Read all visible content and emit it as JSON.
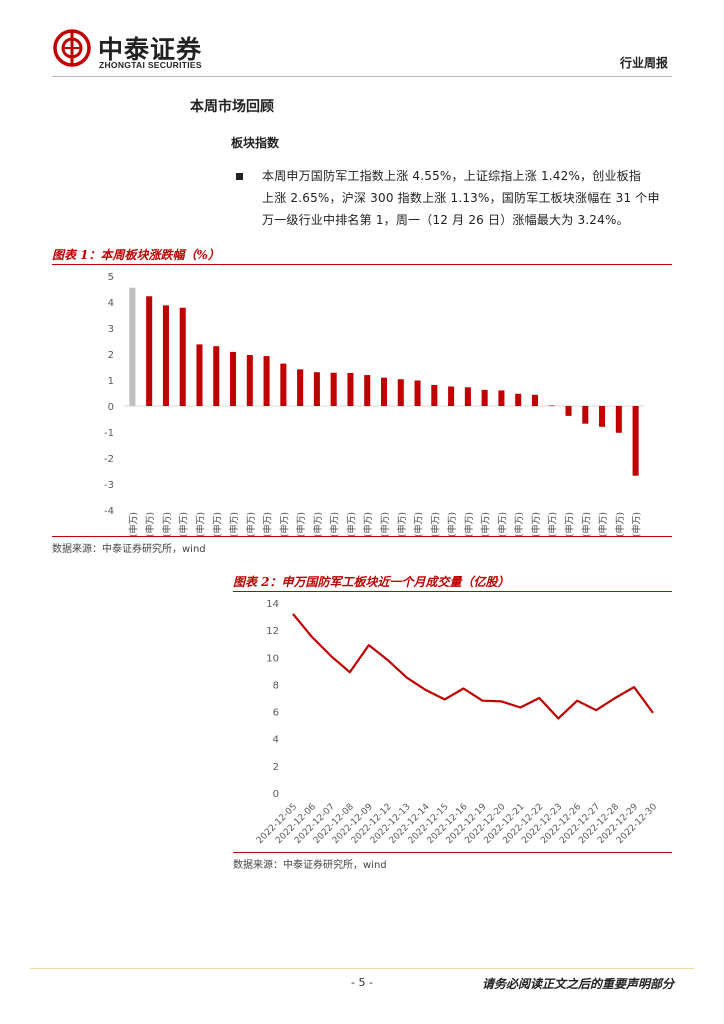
{
  "header": {
    "company_cn": "中泰证券",
    "company_en": "ZHONGTAI SECURITIES",
    "report_type": "行业周报"
  },
  "section_title": "本周市场回顾",
  "subsection_title": "板块指数",
  "bullet_lines": [
    "本周申万国防军工指数上涨 4.55%，上证综指上涨 1.42%，创业板指",
    "上涨 2.65%，沪深 300 指数上涨 1.13%，国防军工板块涨幅在 31 个申",
    "万一级行业中排名第 1，周一（12 月 26 日）涨幅最大为 3.24%。"
  ],
  "figure1": {
    "caption": "图表 1：本周板块涨跌幅（%）",
    "source": "数据来源：中泰证券研究所，wind"
  },
  "figure2": {
    "caption": "图表 2：申万国防军工板块近一个月成交量（亿股）",
    "source": "数据来源：中泰证券研究所，wind"
  },
  "colors": {
    "accent": "#c00000",
    "highlight_bar": "#bfbfbf",
    "axis_text": "#595959"
  },
  "chart_data": [
    {
      "type": "bar",
      "title": "本周板块涨跌幅（%）",
      "xlabel": "",
      "ylabel": "",
      "ylim": [
        -4,
        5
      ],
      "yticks": [
        5,
        4,
        3,
        2,
        1,
        0,
        -1,
        -2,
        -3,
        -4
      ],
      "grid": false,
      "categories": [
        "国防军工(申万)",
        "公用事业(申万)",
        "美容护理(申万)",
        "电力设备(申万)",
        "环保(申万)",
        "银行(申万)",
        "农林牧渔(申万)",
        "机械设备(申万)",
        "传媒(申万)",
        "基础化工(申万)",
        "计算机(申万)",
        "电子(申万)",
        "石油石化(申万)",
        "非银金融(申万)",
        "通信(申万)",
        "纺织服饰(申万)",
        "社会服务(申万)",
        "医药生物(申万)",
        "轻工制造(申万)",
        "综合(申万)",
        "汽车(申万)",
        "建筑装饰(申万)",
        "有色金属(申万)",
        "钢铁(申万)",
        "商贸零售(申万)",
        "交通运输(申万)",
        "煤炭(申万)",
        "家用电器(申万)",
        "食品饮料(申万)",
        "建筑材料(申万)",
        "房地产(申万)"
      ],
      "values": [
        4.55,
        4.22,
        3.87,
        3.78,
        2.37,
        2.3,
        2.08,
        1.96,
        1.92,
        1.63,
        1.41,
        1.3,
        1.28,
        1.27,
        1.19,
        1.09,
        1.03,
        0.98,
        0.81,
        0.75,
        0.72,
        0.62,
        0.6,
        0.47,
        0.43,
        0.02,
        -0.38,
        -0.68,
        -0.8,
        -1.03,
        -2.68
      ],
      "highlight_index": 0
    },
    {
      "type": "line",
      "title": "申万国防军工板块近一个月成交量（亿股）",
      "xlabel": "",
      "ylabel": "",
      "ylim": [
        0,
        14
      ],
      "yticks": [
        0,
        2,
        4,
        6,
        8,
        10,
        12,
        14
      ],
      "grid": false,
      "x": [
        "2022-12-05",
        "2022-12-06",
        "2022-12-07",
        "2022-12-08",
        "2022-12-09",
        "2022-12-12",
        "2022-12-13",
        "2022-12-14",
        "2022-12-15",
        "2022-12-16",
        "2022-12-19",
        "2022-12-20",
        "2022-12-21",
        "2022-12-22",
        "2022-12-23",
        "2022-12-26",
        "2022-12-27",
        "2022-12-28",
        "2022-12-29",
        "2022-12-30"
      ],
      "values": [
        13.2,
        11.5,
        10.1,
        8.9,
        10.9,
        9.8,
        8.5,
        7.6,
        6.9,
        7.7,
        6.8,
        6.75,
        6.3,
        7.0,
        5.5,
        6.8,
        6.1,
        7.0,
        7.8,
        5.9
      ]
    }
  ],
  "footer": {
    "page_number": "- 5 -",
    "disclaimer": "请务必阅读正文之后的重要声明部分"
  }
}
